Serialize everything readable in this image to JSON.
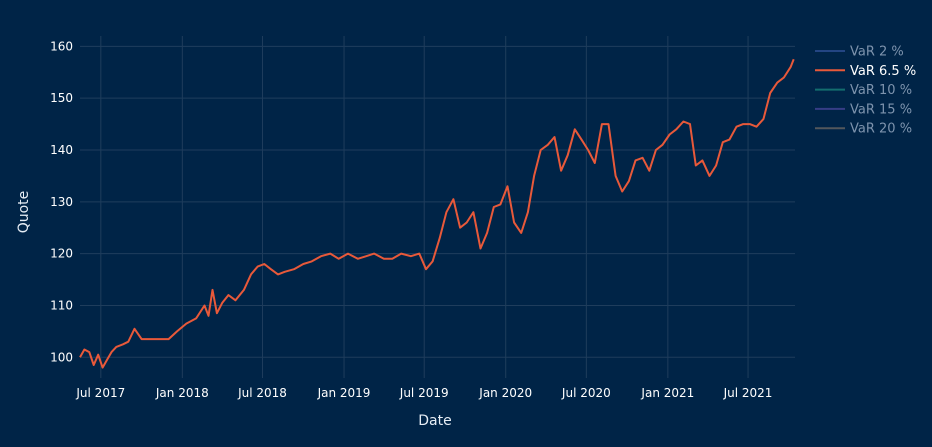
{
  "chart_data": {
    "type": "line",
    "title": "",
    "xlabel": "Date",
    "ylabel": "Quote",
    "x_range": [
      "2017-05-15",
      "2021-10-15"
    ],
    "ylim": [
      96,
      162
    ],
    "y_ticks": [
      100,
      110,
      120,
      130,
      140,
      150,
      160
    ],
    "x_ticks": [
      {
        "date": "2017-07-01",
        "label": "Jul 2017"
      },
      {
        "date": "2018-01-01",
        "label": "Jan 2018"
      },
      {
        "date": "2018-07-01",
        "label": "Jul 2018"
      },
      {
        "date": "2019-01-01",
        "label": "Jan 2019"
      },
      {
        "date": "2019-07-01",
        "label": "Jul 2019"
      },
      {
        "date": "2020-01-01",
        "label": "Jan 2020"
      },
      {
        "date": "2020-07-01",
        "label": "Jul 2020"
      },
      {
        "date": "2021-01-01",
        "label": "Jan 2021"
      },
      {
        "date": "2021-07-01",
        "label": "Jul 2021"
      }
    ],
    "legend_position": "top-right",
    "series": [
      {
        "name": "VaR 2 %",
        "color": "#3b5bab",
        "visible": false,
        "dates": [],
        "values": []
      },
      {
        "name": "VaR 6.5 %",
        "color": "#e8593a",
        "visible": true,
        "dates": [
          "2017-05-15",
          "2017-05-25",
          "2017-06-05",
          "2017-06-15",
          "2017-06-25",
          "2017-07-05",
          "2017-07-15",
          "2017-07-25",
          "2017-08-05",
          "2017-08-20",
          "2017-09-01",
          "2017-09-15",
          "2017-10-01",
          "2017-10-10",
          "2017-11-01",
          "2017-12-01",
          "2017-12-20",
          "2018-01-10",
          "2018-02-01",
          "2018-02-20",
          "2018-03-01",
          "2018-03-10",
          "2018-03-20",
          "2018-04-01",
          "2018-04-15",
          "2018-05-01",
          "2018-05-20",
          "2018-06-05",
          "2018-06-20",
          "2018-07-05",
          "2018-07-20",
          "2018-08-05",
          "2018-08-20",
          "2018-09-10",
          "2018-10-01",
          "2018-10-20",
          "2018-11-10",
          "2018-12-01",
          "2018-12-20",
          "2019-01-10",
          "2019-02-01",
          "2019-02-20",
          "2019-03-10",
          "2019-04-01",
          "2019-04-20",
          "2019-05-10",
          "2019-06-01",
          "2019-06-20",
          "2019-07-05",
          "2019-07-20",
          "2019-08-05",
          "2019-08-20",
          "2019-09-05",
          "2019-09-20",
          "2019-10-05",
          "2019-10-20",
          "2019-11-05",
          "2019-11-20",
          "2019-12-05",
          "2019-12-20",
          "2020-01-05",
          "2020-01-20",
          "2020-02-05",
          "2020-02-20",
          "2020-03-05",
          "2020-03-20",
          "2020-04-05",
          "2020-04-20",
          "2020-05-05",
          "2020-05-20",
          "2020-06-05",
          "2020-06-20",
          "2020-07-05",
          "2020-07-20",
          "2020-08-05",
          "2020-08-20",
          "2020-09-05",
          "2020-09-20",
          "2020-10-05",
          "2020-10-20",
          "2020-11-05",
          "2020-11-20",
          "2020-12-05",
          "2020-12-20",
          "2021-01-05",
          "2021-01-20",
          "2021-02-05",
          "2021-02-20",
          "2021-03-05",
          "2021-03-20",
          "2021-04-05",
          "2021-04-20",
          "2021-05-05",
          "2021-05-20",
          "2021-06-05",
          "2021-06-20",
          "2021-07-05",
          "2021-07-20",
          "2021-08-05",
          "2021-08-20",
          "2021-09-05",
          "2021-09-20",
          "2021-10-05",
          "2021-10-12"
        ],
        "values": [
          100,
          101.5,
          101,
          98.5,
          100.5,
          98,
          99.5,
          101,
          102,
          102.5,
          103,
          105.5,
          103.5,
          103.5,
          103.5,
          103.5,
          105,
          106.5,
          107.5,
          110,
          108,
          113,
          108.5,
          110.5,
          112,
          111,
          113,
          116,
          117.5,
          118,
          117,
          116,
          116.5,
          117,
          118,
          118.5,
          119.5,
          120,
          119,
          120,
          119,
          119.5,
          120,
          119,
          119,
          120,
          119.5,
          120,
          117,
          118.5,
          123,
          128,
          130.5,
          125,
          126,
          128,
          121,
          124,
          129,
          129.5,
          133,
          126,
          124,
          128,
          135,
          140,
          141,
          142.5,
          136,
          139,
          144,
          142,
          140,
          137.5,
          145,
          145,
          135,
          132,
          134,
          138,
          138.5,
          136,
          140,
          141,
          143,
          144,
          145.5,
          145,
          137,
          138,
          135,
          137,
          141.5,
          142,
          144.5,
          145,
          145,
          144.5,
          146,
          151,
          153,
          154,
          156,
          157.5
        ]
      },
      {
        "name": "VaR 10 %",
        "color": "#1f9e89",
        "visible": false,
        "dates": [],
        "values": []
      },
      {
        "name": "VaR 15 %",
        "color": "#5a4fb0",
        "visible": false,
        "dates": [],
        "values": []
      },
      {
        "name": "VaR 20 %",
        "color": "#8a7a6a",
        "visible": false,
        "dates": [],
        "values": []
      }
    ]
  }
}
